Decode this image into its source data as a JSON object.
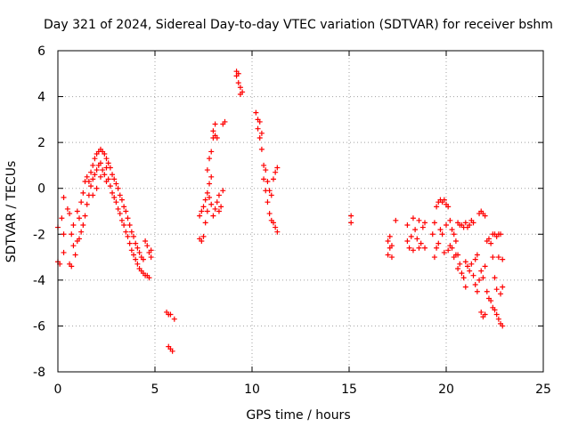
{
  "chart_data": {
    "type": "scatter",
    "title": "Day 321 of 2024, Sidereal Day-to-day VTEC variation (SDTVAR) for receiver bshm",
    "xlabel": "GPS time / hours",
    "ylabel": "SDTVAR / TECUs",
    "xlim": [
      0,
      25
    ],
    "ylim": [
      -8,
      6
    ],
    "xticks": [
      0,
      5,
      10,
      15,
      20,
      25
    ],
    "yticks": [
      -8,
      -6,
      -4,
      -2,
      0,
      2,
      4,
      6
    ],
    "grid": true,
    "marker": "+",
    "color": "#ff0000",
    "series": [
      {
        "name": "bshm",
        "points": [
          [
            0.0,
            -1.7
          ],
          [
            0.0,
            -3.2
          ],
          [
            0.1,
            -3.3
          ],
          [
            0.2,
            -1.3
          ],
          [
            0.3,
            -2.0
          ],
          [
            0.3,
            -0.4
          ],
          [
            0.3,
            -2.8
          ],
          [
            0.5,
            -0.9
          ],
          [
            0.6,
            -1.1
          ],
          [
            0.6,
            -3.3
          ],
          [
            0.7,
            -3.4
          ],
          [
            0.7,
            -2.0
          ],
          [
            0.8,
            -1.6
          ],
          [
            0.8,
            -2.5
          ],
          [
            0.9,
            -2.9
          ],
          [
            1.0,
            -1.0
          ],
          [
            1.0,
            -2.3
          ],
          [
            1.1,
            -1.3
          ],
          [
            1.1,
            -2.2
          ],
          [
            1.2,
            -0.6
          ],
          [
            1.2,
            -1.9
          ],
          [
            1.3,
            -0.2
          ],
          [
            1.3,
            -1.6
          ],
          [
            1.4,
            0.3
          ],
          [
            1.4,
            -1.2
          ],
          [
            1.5,
            0.5
          ],
          [
            1.5,
            -0.7
          ],
          [
            1.6,
            0.3
          ],
          [
            1.6,
            -0.3
          ],
          [
            1.7,
            0.7
          ],
          [
            1.7,
            0.1
          ],
          [
            1.8,
            1.0
          ],
          [
            1.8,
            0.4
          ],
          [
            1.8,
            -0.3
          ],
          [
            1.9,
            1.3
          ],
          [
            1.9,
            0.6
          ],
          [
            2.0,
            1.5
          ],
          [
            2.0,
            0.8
          ],
          [
            2.0,
            0.0
          ],
          [
            2.1,
            1.6
          ],
          [
            2.1,
            1.0
          ],
          [
            2.2,
            1.7
          ],
          [
            2.2,
            1.1
          ],
          [
            2.2,
            0.5
          ],
          [
            2.3,
            1.6
          ],
          [
            2.3,
            0.8
          ],
          [
            2.4,
            1.5
          ],
          [
            2.4,
            0.6
          ],
          [
            2.5,
            1.3
          ],
          [
            2.5,
            0.9
          ],
          [
            2.5,
            0.3
          ],
          [
            2.6,
            1.1
          ],
          [
            2.6,
            0.4
          ],
          [
            2.7,
            0.9
          ],
          [
            2.7,
            0.1
          ],
          [
            2.8,
            0.6
          ],
          [
            2.8,
            -0.2
          ],
          [
            2.9,
            0.4
          ],
          [
            2.9,
            -0.4
          ],
          [
            3.0,
            0.2
          ],
          [
            3.0,
            -0.6
          ],
          [
            3.1,
            0.0
          ],
          [
            3.1,
            -0.9
          ],
          [
            3.2,
            -0.3
          ],
          [
            3.2,
            -1.1
          ],
          [
            3.3,
            -0.5
          ],
          [
            3.3,
            -1.4
          ],
          [
            3.4,
            -0.8
          ],
          [
            3.4,
            -1.6
          ],
          [
            3.5,
            -1.0
          ],
          [
            3.5,
            -1.9
          ],
          [
            3.6,
            -1.3
          ],
          [
            3.6,
            -2.1
          ],
          [
            3.7,
            -1.6
          ],
          [
            3.7,
            -2.4
          ],
          [
            3.8,
            -1.9
          ],
          [
            3.8,
            -2.7
          ],
          [
            3.9,
            -2.1
          ],
          [
            3.9,
            -2.9
          ],
          [
            4.0,
            -2.4
          ],
          [
            4.0,
            -3.1
          ],
          [
            4.1,
            -2.6
          ],
          [
            4.1,
            -3.3
          ],
          [
            4.2,
            -2.8
          ],
          [
            4.2,
            -3.5
          ],
          [
            4.3,
            -3.0
          ],
          [
            4.3,
            -3.6
          ],
          [
            4.4,
            -3.1
          ],
          [
            4.4,
            -3.7
          ],
          [
            4.5,
            -2.3
          ],
          [
            4.5,
            -3.8
          ],
          [
            4.6,
            -2.5
          ],
          [
            4.6,
            -3.8
          ],
          [
            4.7,
            -2.8
          ],
          [
            4.7,
            -3.9
          ],
          [
            4.8,
            -3.0
          ],
          [
            4.8,
            -2.7
          ],
          [
            5.6,
            -5.4
          ],
          [
            5.7,
            -5.5
          ],
          [
            5.8,
            -5.5
          ],
          [
            6.0,
            -5.7
          ],
          [
            5.7,
            -6.9
          ],
          [
            5.8,
            -7.0
          ],
          [
            5.9,
            -7.1
          ],
          [
            7.3,
            -1.2
          ],
          [
            7.3,
            -2.2
          ],
          [
            7.4,
            -2.3
          ],
          [
            7.4,
            -1.0
          ],
          [
            7.5,
            -2.1
          ],
          [
            7.5,
            -0.8
          ],
          [
            7.6,
            -1.5
          ],
          [
            7.6,
            -0.5
          ],
          [
            7.7,
            -1.0
          ],
          [
            7.7,
            -0.2
          ],
          [
            7.7,
            0.8
          ],
          [
            7.8,
            -0.4
          ],
          [
            7.8,
            0.2
          ],
          [
            7.8,
            1.3
          ],
          [
            7.9,
            -0.7
          ],
          [
            7.9,
            0.5
          ],
          [
            7.9,
            1.6
          ],
          [
            8.0,
            -1.2
          ],
          [
            8.0,
            2.5
          ],
          [
            8.0,
            2.2
          ],
          [
            8.1,
            -0.9
          ],
          [
            8.1,
            2.8
          ],
          [
            8.1,
            2.3
          ],
          [
            8.2,
            -0.6
          ],
          [
            8.2,
            2.2
          ],
          [
            8.3,
            -1.0
          ],
          [
            8.3,
            -0.3
          ],
          [
            8.4,
            -0.8
          ],
          [
            8.5,
            -0.1
          ],
          [
            8.5,
            2.8
          ],
          [
            8.6,
            2.9
          ],
          [
            9.2,
            5.1
          ],
          [
            9.2,
            4.9
          ],
          [
            9.3,
            5.0
          ],
          [
            9.3,
            4.6
          ],
          [
            9.4,
            4.4
          ],
          [
            9.4,
            4.1
          ],
          [
            9.5,
            4.2
          ],
          [
            10.2,
            3.3
          ],
          [
            10.3,
            3.0
          ],
          [
            10.3,
            2.6
          ],
          [
            10.4,
            2.9
          ],
          [
            10.4,
            2.2
          ],
          [
            10.5,
            2.4
          ],
          [
            10.5,
            1.7
          ],
          [
            10.6,
            1.0
          ],
          [
            10.6,
            0.4
          ],
          [
            10.7,
            0.8
          ],
          [
            10.7,
            -0.1
          ],
          [
            10.8,
            0.3
          ],
          [
            10.8,
            -0.6
          ],
          [
            10.9,
            -0.1
          ],
          [
            10.9,
            -1.1
          ],
          [
            11.0,
            -0.3
          ],
          [
            11.0,
            -1.4
          ],
          [
            11.1,
            0.4
          ],
          [
            11.1,
            -1.5
          ],
          [
            11.2,
            0.7
          ],
          [
            11.2,
            -1.7
          ],
          [
            11.3,
            0.9
          ],
          [
            11.3,
            -1.9
          ],
          [
            15.1,
            -1.2
          ],
          [
            15.1,
            -1.5
          ],
          [
            17.0,
            -2.3
          ],
          [
            17.0,
            -2.9
          ],
          [
            17.1,
            -2.1
          ],
          [
            17.1,
            -2.6
          ],
          [
            17.2,
            -2.5
          ],
          [
            17.2,
            -3.0
          ],
          [
            17.4,
            -1.4
          ],
          [
            18.0,
            -1.6
          ],
          [
            18.0,
            -2.3
          ],
          [
            18.1,
            -2.6
          ],
          [
            18.2,
            -2.1
          ],
          [
            18.3,
            -1.3
          ],
          [
            18.3,
            -2.7
          ],
          [
            18.4,
            -1.8
          ],
          [
            18.5,
            -2.2
          ],
          [
            18.6,
            -1.4
          ],
          [
            18.6,
            -2.6
          ],
          [
            18.7,
            -2.4
          ],
          [
            18.8,
            -1.7
          ],
          [
            18.9,
            -1.5
          ],
          [
            18.9,
            -2.6
          ],
          [
            19.3,
            -2.0
          ],
          [
            19.4,
            -1.5
          ],
          [
            19.4,
            -3.0
          ],
          [
            19.5,
            -0.8
          ],
          [
            19.5,
            -2.6
          ],
          [
            19.6,
            -0.6
          ],
          [
            19.6,
            -2.4
          ],
          [
            19.7,
            -0.5
          ],
          [
            19.7,
            -1.8
          ],
          [
            19.8,
            -0.6
          ],
          [
            19.8,
            -2.0
          ],
          [
            19.9,
            -0.5
          ],
          [
            19.9,
            -2.8
          ],
          [
            20.0,
            -0.7
          ],
          [
            20.0,
            -1.6
          ],
          [
            20.1,
            -0.8
          ],
          [
            20.1,
            -2.7
          ],
          [
            20.2,
            -1.4
          ],
          [
            20.2,
            -2.5
          ],
          [
            20.3,
            -1.8
          ],
          [
            20.3,
            -2.6
          ],
          [
            20.4,
            -2.0
          ],
          [
            20.4,
            -3.0
          ],
          [
            20.5,
            -2.3
          ],
          [
            20.5,
            -2.9
          ],
          [
            20.6,
            -1.5
          ],
          [
            20.6,
            -2.9
          ],
          [
            20.6,
            -3.5
          ],
          [
            20.7,
            -1.6
          ],
          [
            20.7,
            -3.3
          ],
          [
            20.8,
            -1.6
          ],
          [
            20.8,
            -3.7
          ],
          [
            20.9,
            -1.7
          ],
          [
            20.9,
            -3.9
          ],
          [
            21.0,
            -1.5
          ],
          [
            21.0,
            -3.2
          ],
          [
            21.0,
            -4.3
          ],
          [
            21.1,
            -1.7
          ],
          [
            21.1,
            -3.4
          ],
          [
            21.2,
            -1.6
          ],
          [
            21.2,
            -3.6
          ],
          [
            21.3,
            -1.4
          ],
          [
            21.3,
            -3.3
          ],
          [
            21.4,
            -1.5
          ],
          [
            21.4,
            -3.8
          ],
          [
            21.5,
            -3.1
          ],
          [
            21.5,
            -4.2
          ],
          [
            21.6,
            -2.9
          ],
          [
            21.6,
            -4.5
          ],
          [
            21.7,
            -1.1
          ],
          [
            21.7,
            -4.0
          ],
          [
            21.8,
            -1.0
          ],
          [
            21.8,
            -3.6
          ],
          [
            21.8,
            -5.4
          ],
          [
            21.9,
            -1.1
          ],
          [
            21.9,
            -3.9
          ],
          [
            21.9,
            -5.6
          ],
          [
            22.0,
            -1.2
          ],
          [
            22.0,
            -3.4
          ],
          [
            22.0,
            -5.5
          ],
          [
            22.1,
            -2.3
          ],
          [
            22.1,
            -4.5
          ],
          [
            22.2,
            -2.2
          ],
          [
            22.2,
            -4.8
          ],
          [
            22.3,
            -2.4
          ],
          [
            22.3,
            -4.9
          ],
          [
            22.4,
            -2.0
          ],
          [
            22.4,
            -3.0
          ],
          [
            22.4,
            -5.2
          ],
          [
            22.5,
            -2.0
          ],
          [
            22.5,
            -3.9
          ],
          [
            22.5,
            -5.3
          ],
          [
            22.6,
            -2.1
          ],
          [
            22.6,
            -4.4
          ],
          [
            22.6,
            -5.5
          ],
          [
            22.7,
            -2.0
          ],
          [
            22.7,
            -3.0
          ],
          [
            22.7,
            -5.7
          ],
          [
            22.8,
            -2.0
          ],
          [
            22.8,
            -4.6
          ],
          [
            22.8,
            -5.9
          ],
          [
            22.9,
            -3.1
          ],
          [
            22.9,
            -4.3
          ],
          [
            22.9,
            -6.0
          ]
        ]
      }
    ]
  }
}
